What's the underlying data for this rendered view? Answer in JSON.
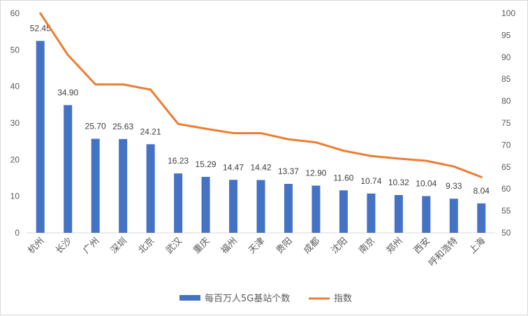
{
  "chart_data": {
    "type": "bar",
    "categories": [
      "杭州",
      "长沙",
      "广州",
      "深圳",
      "北京",
      "武汉",
      "重庆",
      "福州",
      "天津",
      "贵阳",
      "成都",
      "沈阳",
      "南京",
      "郑州",
      "西安",
      "呼和浩特",
      "上海"
    ],
    "series": [
      {
        "name": "每百万人5G基站个数",
        "type": "bar",
        "axis": "left",
        "color": "#4472C4",
        "values": [
          52.45,
          34.9,
          25.7,
          25.63,
          24.21,
          16.23,
          15.29,
          14.47,
          14.42,
          13.37,
          12.9,
          11.6,
          10.74,
          10.32,
          10.04,
          9.33,
          8.04
        ],
        "labels": [
          "52.45",
          "34.90",
          "25.70",
          "25.63",
          "24.21",
          "16.23",
          "15.29",
          "14.47",
          "14.42",
          "13.37",
          "12.90",
          "11.60",
          "10.74",
          "10.32",
          "10.04",
          "9.33",
          "8.04"
        ]
      },
      {
        "name": "指数",
        "type": "line",
        "axis": "right",
        "color": "#ED7D31",
        "values": [
          100,
          90.5,
          83.8,
          83.8,
          82.6,
          74.8,
          73.7,
          72.7,
          72.7,
          71.3,
          70.6,
          68.7,
          67.5,
          66.9,
          66.4,
          65.1,
          62.7
        ]
      }
    ],
    "y_left": {
      "min": 0,
      "max": 60,
      "ticks": [
        "0",
        "10",
        "20",
        "30",
        "40",
        "50",
        "60"
      ]
    },
    "y_right": {
      "min": 50,
      "max": 100,
      "ticks": [
        "50",
        "55",
        "60",
        "65",
        "70",
        "75",
        "80",
        "85",
        "90",
        "95",
        "100"
      ]
    },
    "grid": false,
    "legend_position": "bottom"
  }
}
